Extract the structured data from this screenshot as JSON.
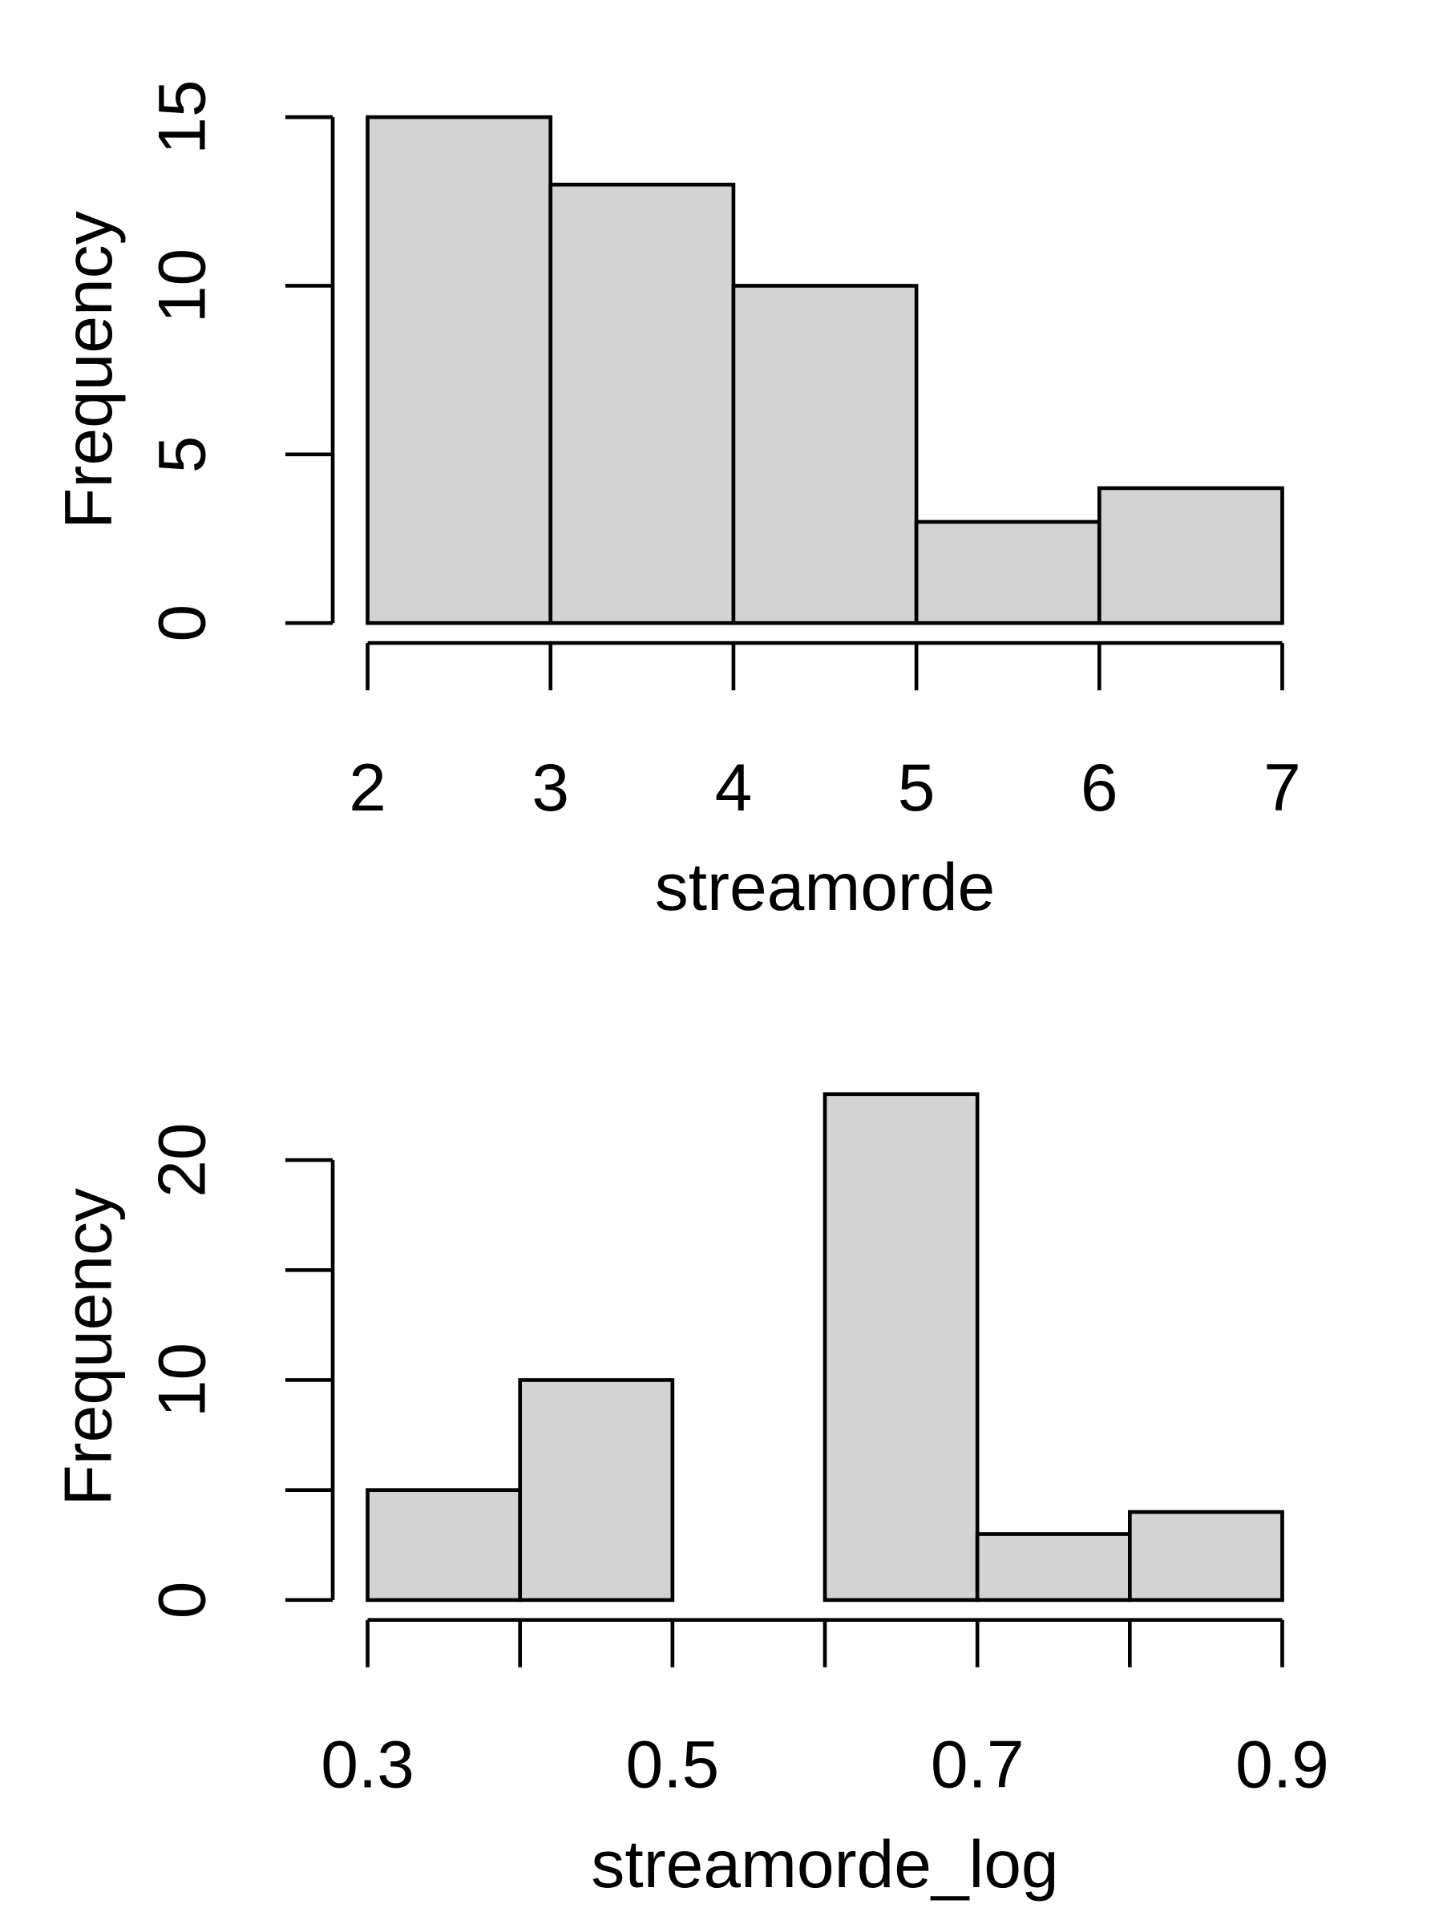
{
  "chart_data": [
    {
      "type": "histogram",
      "x_label": "streamorde",
      "y_label": "Frequency",
      "bins": [
        2,
        3,
        4,
        5,
        6,
        7
      ],
      "values": [
        15,
        13,
        10,
        3,
        4
      ],
      "color": "#d3d3d3",
      "xlim": [
        2,
        7
      ],
      "xticks": [
        2,
        3,
        4,
        5,
        6,
        7
      ],
      "ylim": [
        0,
        15
      ],
      "yticks": [
        0,
        5,
        10,
        15
      ]
    },
    {
      "type": "histogram",
      "x_label": "streamorde_log",
      "y_label": "Frequency",
      "bins": [
        0.3,
        0.4,
        0.5,
        0.6,
        0.7,
        0.8,
        0.9
      ],
      "values": [
        5,
        10,
        0,
        23,
        3,
        4
      ],
      "color": "#d3d3d3",
      "xlim": [
        0.3,
        0.9
      ],
      "xticks": [
        0.3,
        0.5,
        0.7,
        0.9
      ],
      "minor_xticks": [
        0.4,
        0.6,
        0.8
      ],
      "ylim": [
        0,
        23
      ],
      "yticks": [
        0,
        10,
        20
      ],
      "minor_yticks": [
        5,
        15
      ]
    }
  ]
}
